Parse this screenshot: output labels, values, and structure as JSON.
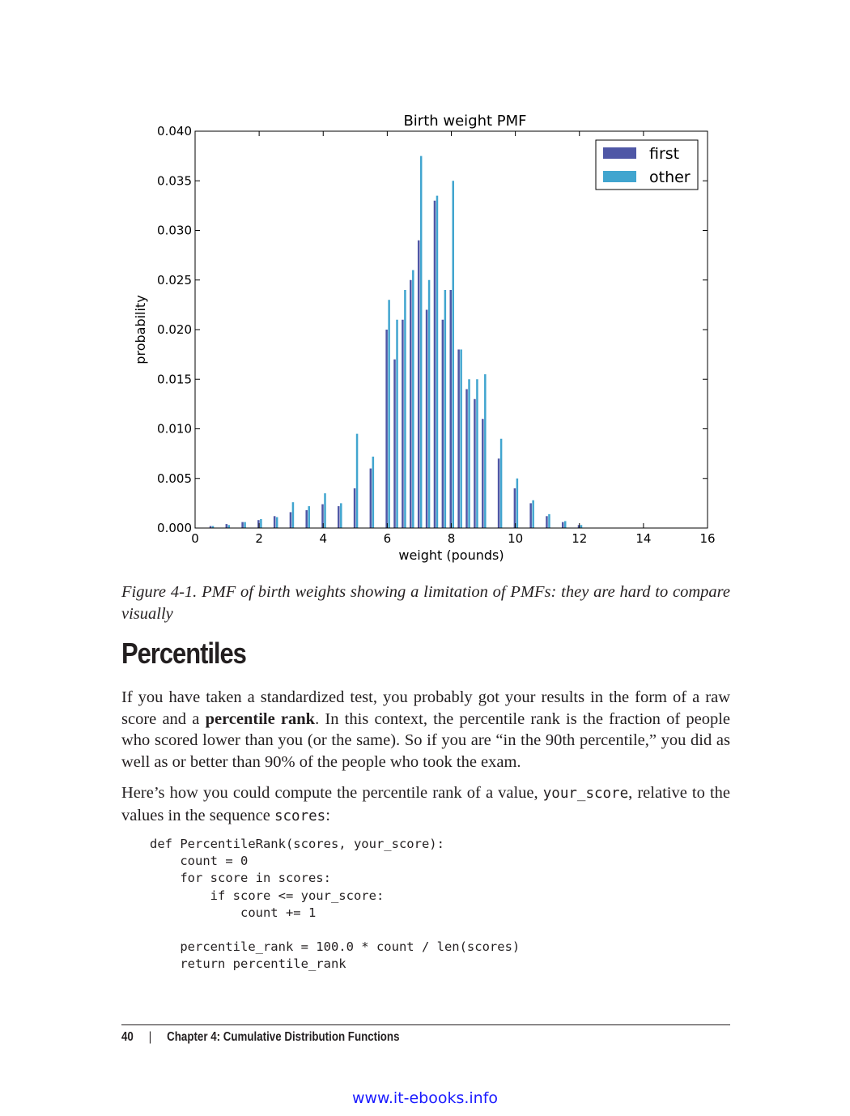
{
  "chart_data": {
    "type": "bar",
    "title": "Birth weight PMF",
    "xlabel": "weight (pounds)",
    "ylabel": "probability",
    "xlim": [
      0,
      16
    ],
    "ylim": [
      0,
      0.04
    ],
    "xticks": [
      "0",
      "2",
      "4",
      "6",
      "8",
      "10",
      "12",
      "14",
      "16"
    ],
    "yticks": [
      "0.000",
      "0.005",
      "0.010",
      "0.015",
      "0.020",
      "0.025",
      "0.030",
      "0.035",
      "0.040"
    ],
    "legend_position": "top-right",
    "series": [
      {
        "name": "first",
        "color": "#4f57a6",
        "x": [
          0.5,
          1.0,
          1.5,
          2.0,
          2.5,
          3.0,
          3.5,
          4.0,
          4.5,
          5.0,
          5.5,
          6.0,
          6.25,
          6.5,
          6.75,
          7.0,
          7.25,
          7.5,
          7.75,
          8.0,
          8.25,
          8.5,
          8.75,
          9.0,
          9.5,
          10.0,
          10.5,
          11.0,
          11.5,
          12.0
        ],
        "values": [
          0.0002,
          0.0004,
          0.0006,
          0.0008,
          0.0012,
          0.0016,
          0.0018,
          0.0024,
          0.0022,
          0.004,
          0.006,
          0.02,
          0.017,
          0.021,
          0.025,
          0.029,
          0.022,
          0.033,
          0.021,
          0.024,
          0.018,
          0.014,
          0.013,
          0.011,
          0.007,
          0.004,
          0.0025,
          0.0012,
          0.0006,
          0.0003
        ]
      },
      {
        "name": "other",
        "color": "#41a5cf",
        "x": [
          0.5,
          1.0,
          1.5,
          2.0,
          2.5,
          3.0,
          3.5,
          4.0,
          4.5,
          5.0,
          5.5,
          6.0,
          6.25,
          6.5,
          6.75,
          7.0,
          7.25,
          7.5,
          7.75,
          8.0,
          8.25,
          8.5,
          8.75,
          9.0,
          9.5,
          10.0,
          10.5,
          11.0,
          11.5,
          12.0
        ],
        "values": [
          0.0002,
          0.0003,
          0.0006,
          0.0009,
          0.0011,
          0.0026,
          0.0022,
          0.0035,
          0.0025,
          0.0095,
          0.0072,
          0.023,
          0.021,
          0.024,
          0.026,
          0.0375,
          0.025,
          0.0335,
          0.024,
          0.035,
          0.018,
          0.015,
          0.015,
          0.0155,
          0.009,
          0.005,
          0.0028,
          0.0014,
          0.0007,
          0.0003
        ]
      }
    ]
  },
  "caption": "Figure 4-1. PMF of birth weights showing a limitation of PMFs: they are hard to compare visually",
  "heading": "Percentiles",
  "para1": {
    "before": "If you have taken a standardized test, you probably got your results in the form of a raw score and a ",
    "term": "percentile rank",
    "after": ". In this context, the percentile rank is the fraction of people who scored lower than you (or the same). So if you are “in the 90th percentile,” you did as well as or better than 90% of the people who took the exam."
  },
  "para2": {
    "before": "Here’s how you could compute the percentile rank of a value, ",
    "code1": "your_score",
    "middle": ", relative to the values in the sequence ",
    "code2": "scores",
    "after": ":"
  },
  "code": "def PercentileRank(scores, your_score):\n    count = 0\n    for score in scores:\n        if score <= your_score:\n            count += 1\n\n    percentile_rank = 100.0 * count / len(scores)\n    return percentile_rank",
  "footer": {
    "page_number": "40",
    "separator": "|",
    "chapter": "Chapter 4: Cumulative Distribution Functions"
  },
  "watermark": "www.it-ebooks.info"
}
